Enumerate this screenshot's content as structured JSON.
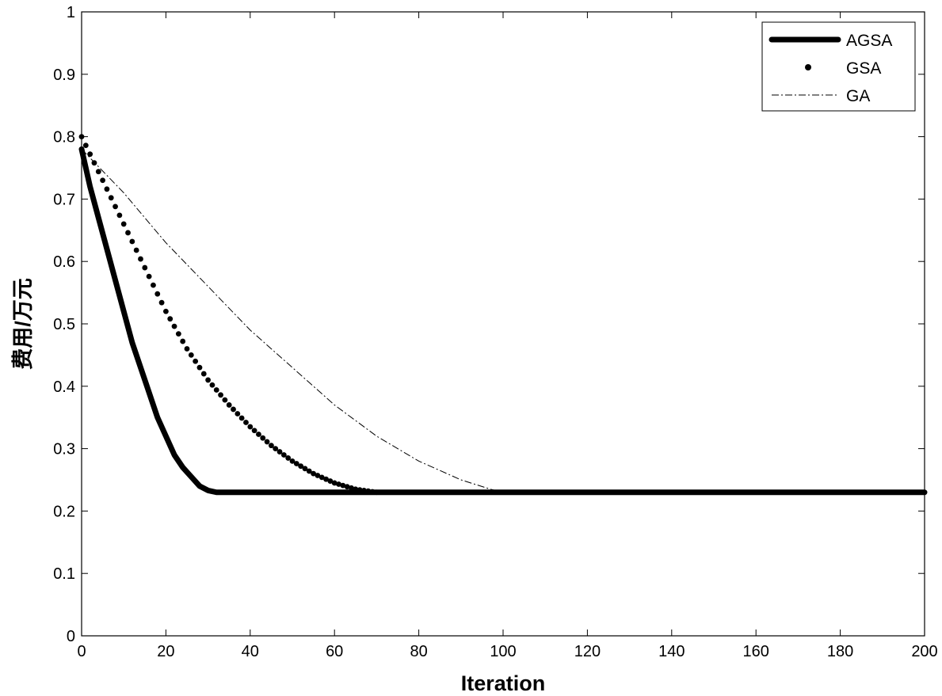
{
  "chart_data": {
    "type": "line",
    "title": "",
    "xlabel": "Iteration",
    "ylabel": "费用/万元",
    "xlim": [
      0,
      200
    ],
    "ylim": [
      0,
      1
    ],
    "xticks": [
      0,
      20,
      40,
      60,
      80,
      100,
      120,
      140,
      160,
      180,
      200
    ],
    "yticks": [
      0,
      0.1,
      0.2,
      0.3,
      0.4,
      0.5,
      0.6,
      0.7,
      0.8,
      0.9,
      1
    ],
    "xtick_labels": [
      "0",
      "20",
      "40",
      "60",
      "80",
      "100",
      "120",
      "140",
      "160",
      "180",
      "200"
    ],
    "ytick_labels": [
      "0",
      "0.1",
      "0.2",
      "0.3",
      "0.4",
      "0.5",
      "0.6",
      "0.7",
      "0.8",
      "0.9",
      "1"
    ],
    "grid": false,
    "legend_position": "top-right",
    "series": [
      {
        "name": "AGSA",
        "style": "thick-solid",
        "x": [
          0,
          2,
          4,
          6,
          8,
          10,
          12,
          14,
          16,
          18,
          20,
          22,
          24,
          26,
          28,
          30,
          32,
          40,
          60,
          80,
          100,
          120,
          140,
          160,
          180,
          200
        ],
        "y": [
          0.78,
          0.72,
          0.67,
          0.62,
          0.57,
          0.52,
          0.47,
          0.43,
          0.39,
          0.35,
          0.32,
          0.29,
          0.27,
          0.255,
          0.24,
          0.233,
          0.23,
          0.23,
          0.23,
          0.23,
          0.23,
          0.23,
          0.23,
          0.23,
          0.23,
          0.23
        ]
      },
      {
        "name": "GSA",
        "style": "dots",
        "x": [
          0,
          5,
          10,
          15,
          20,
          25,
          30,
          35,
          40,
          45,
          50,
          55,
          60,
          65,
          70
        ],
        "y": [
          0.8,
          0.73,
          0.66,
          0.59,
          0.52,
          0.46,
          0.41,
          0.37,
          0.335,
          0.305,
          0.28,
          0.26,
          0.245,
          0.235,
          0.23
        ]
      },
      {
        "name": "GA",
        "style": "thin-dashdot",
        "x": [
          0,
          10,
          20,
          30,
          40,
          50,
          60,
          70,
          80,
          90,
          97,
          100,
          120,
          140,
          160,
          180,
          200
        ],
        "y": [
          0.78,
          0.71,
          0.63,
          0.56,
          0.49,
          0.43,
          0.37,
          0.32,
          0.28,
          0.25,
          0.235,
          0.23,
          0.23,
          0.23,
          0.23,
          0.23,
          0.23
        ]
      }
    ]
  }
}
